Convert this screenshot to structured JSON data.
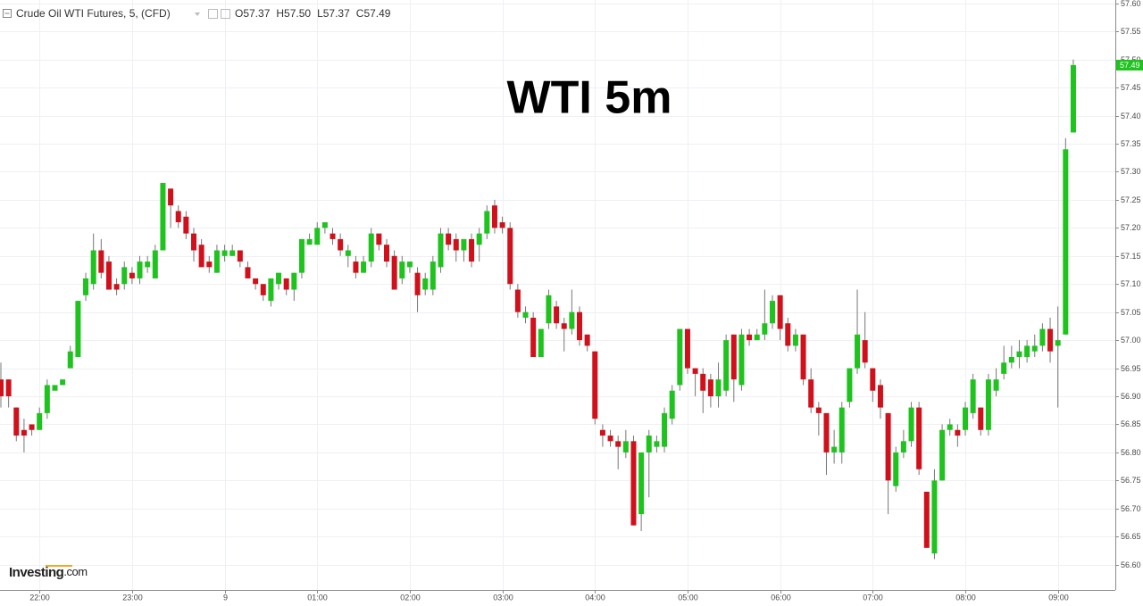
{
  "chart_data": {
    "type": "candlestick",
    "title": "WTI 5m",
    "instrument": "Crude Oil WTI Futures, 5, (CFD)",
    "legend_values": [
      "O57.37",
      "H57.50",
      "L57.37",
      "C57.49"
    ],
    "watermark": [
      "Investing",
      ".com"
    ],
    "up_color": "#1ec31e",
    "down_color": "#d0111b",
    "grid": true,
    "ylim": [
      56.555,
      57.606
    ],
    "yticks": [
      {
        "value": 56.6,
        "label": "56.60"
      },
      56.65,
      {
        "value": 56.7,
        "label": "56.70"
      },
      56.75,
      {
        "value": 56.8,
        "label": "56.80"
      },
      56.85,
      {
        "value": 56.9,
        "label": "56.90"
      },
      56.95,
      {
        "value": 57.0,
        "label": "57.00"
      },
      57.05,
      {
        "value": 57.1,
        "label": "57.10"
      },
      57.15,
      {
        "value": 57.2,
        "label": "57.20"
      },
      57.25,
      {
        "value": 57.3,
        "label": "57.30"
      },
      57.35,
      {
        "value": 57.4,
        "label": "57.40"
      },
      57.45,
      {
        "value": 57.5,
        "label": "57.50"
      },
      57.55,
      {
        "value": 57.6,
        "label": "57.60"
      }
    ],
    "categories": [
      null,
      null,
      null,
      null,
      null,
      "22:00",
      null,
      null,
      null,
      null,
      null,
      null,
      null,
      null,
      null,
      null,
      null,
      "23:00",
      null,
      null,
      null,
      null,
      null,
      null,
      null,
      null,
      null,
      null,
      null,
      "9",
      null,
      null,
      null,
      null,
      null,
      null,
      null,
      null,
      null,
      null,
      null,
      "01:00",
      null,
      null,
      null,
      null,
      null,
      null,
      null,
      null,
      null,
      null,
      null,
      "02:00",
      null,
      null,
      null,
      null,
      null,
      null,
      null,
      null,
      null,
      null,
      null,
      "03:00",
      null,
      null,
      null,
      null,
      null,
      null,
      null,
      null,
      null,
      null,
      null,
      "04:00",
      null,
      null,
      null,
      null,
      null,
      null,
      null,
      null,
      null,
      null,
      null,
      "05:00",
      null,
      null,
      null,
      null,
      null,
      null,
      null,
      null,
      null,
      null,
      null,
      "06:00",
      null,
      null,
      null,
      null,
      null,
      null,
      null,
      null,
      null,
      null,
      null,
      "07:00",
      null,
      null,
      null,
      null,
      null,
      null,
      null,
      null,
      null,
      null,
      null,
      "08:00",
      null,
      null,
      null,
      null,
      null,
      null,
      null,
      null,
      null,
      null,
      null,
      "09:00",
      null,
      null
    ],
    "open": [
      56.93,
      56.93,
      56.88,
      56.84,
      56.85,
      56.84,
      56.87,
      56.91,
      56.92,
      56.95,
      56.97,
      57.08,
      57.1,
      57.16,
      57.14,
      57.1,
      57.1,
      57.12,
      57.11,
      57.13,
      57.11,
      57.16,
      57.27,
      57.23,
      57.22,
      57.19,
      57.17,
      57.14,
      57.12,
      57.15,
      57.15,
      57.16,
      57.13,
      57.11,
      57.1,
      57.07,
      57.1,
      57.11,
      57.09,
      57.12,
      57.17,
      57.17,
      57.2,
      57.19,
      57.18,
      57.15,
      57.14,
      57.12,
      57.14,
      57.19,
      57.17,
      57.15,
      57.11,
      57.13,
      57.12,
      57.09,
      57.09,
      57.13,
      57.19,
      57.18,
      57.16,
      57.18,
      57.17,
      57.19,
      57.24,
      57.21,
      57.2,
      57.09,
      57.04,
      57.04,
      56.97,
      57.03,
      57.06,
      57.03,
      57.02,
      57.05,
      57.01,
      56.98,
      56.84,
      56.83,
      56.82,
      56.8,
      56.82,
      56.69,
      56.8,
      56.81,
      56.81,
      56.86,
      56.92,
      57.02,
      56.95,
      56.94,
      56.93,
      56.9,
      56.91,
      57.01,
      56.92,
      57.01,
      57.0,
      57.01,
      57.03,
      57.08,
      57.03,
      56.99,
      57.01,
      56.93,
      56.88,
      56.87,
      56.8,
      56.8,
      56.89,
      56.95,
      57.0,
      56.95,
      56.92,
      56.87,
      56.74,
      56.8,
      56.82,
      56.88,
      56.73,
      56.62,
      56.75,
      56.84,
      56.84,
      56.84,
      56.87,
      56.88,
      56.84,
      56.91,
      56.94,
      56.96,
      56.97,
      56.97,
      56.98,
      56.99,
      57.02,
      56.99,
      57.01,
      57.37
    ],
    "high": [
      56.96,
      56.93,
      56.88,
      56.86,
      56.85,
      56.88,
      56.93,
      56.92,
      56.93,
      56.99,
      57.07,
      57.12,
      57.19,
      57.18,
      57.15,
      57.11,
      57.14,
      57.13,
      57.15,
      57.15,
      57.17,
      57.28,
      57.27,
      57.24,
      57.23,
      57.2,
      57.18,
      57.15,
      57.17,
      57.17,
      57.17,
      57.16,
      57.14,
      57.11,
      57.1,
      57.11,
      57.12,
      57.11,
      57.12,
      57.18,
      57.19,
      57.21,
      57.21,
      57.2,
      57.19,
      57.17,
      57.15,
      57.15,
      57.2,
      57.19,
      57.18,
      57.16,
      57.15,
      57.14,
      57.13,
      57.12,
      57.15,
      57.2,
      57.2,
      57.19,
      57.18,
      57.19,
      57.2,
      57.24,
      57.25,
      57.22,
      57.21,
      57.1,
      57.06,
      57.05,
      57.02,
      57.09,
      57.07,
      57.04,
      57.09,
      57.06,
      57.01,
      56.98,
      56.85,
      56.84,
      56.83,
      56.84,
      56.83,
      56.8,
      56.84,
      56.83,
      56.88,
      56.92,
      57.02,
      57.02,
      56.95,
      56.95,
      56.94,
      56.96,
      57.01,
      57.01,
      57.02,
      57.02,
      57.02,
      57.09,
      57.08,
      57.08,
      57.04,
      57.02,
      57.01,
      56.95,
      56.89,
      56.87,
      56.84,
      56.89,
      56.95,
      57.09,
      57.05,
      56.95,
      56.93,
      56.87,
      56.81,
      56.84,
      56.89,
      56.89,
      56.73,
      56.77,
      56.85,
      56.86,
      56.85,
      56.89,
      56.94,
      56.88,
      56.94,
      56.95,
      56.99,
      56.99,
      57.0,
      57.0,
      57.01,
      57.03,
      57.04,
      57.06,
      57.36,
      57.5
    ],
    "low": [
      56.88,
      56.88,
      56.82,
      56.8,
      56.83,
      56.84,
      56.86,
      56.91,
      56.92,
      56.95,
      56.97,
      57.07,
      57.09,
      57.11,
      57.09,
      57.08,
      57.09,
      57.1,
      57.1,
      57.12,
      57.11,
      57.16,
      57.2,
      57.2,
      57.18,
      57.14,
      57.13,
      57.12,
      57.12,
      57.14,
      57.15,
      57.13,
      57.11,
      57.09,
      57.07,
      57.06,
      57.09,
      57.08,
      57.07,
      57.11,
      57.17,
      57.17,
      57.19,
      57.17,
      57.15,
      57.13,
      57.11,
      57.12,
      57.13,
      57.16,
      57.13,
      57.09,
      57.1,
      57.12,
      57.05,
      57.08,
      57.08,
      57.12,
      57.16,
      57.14,
      57.14,
      57.13,
      57.14,
      57.18,
      57.19,
      57.19,
      57.09,
      57.04,
      57.03,
      56.97,
      56.97,
      57.02,
      57.02,
      56.98,
      57.01,
      56.99,
      56.98,
      56.85,
      56.81,
      56.81,
      56.77,
      56.79,
      56.67,
      56.66,
      56.72,
      56.8,
      56.8,
      56.85,
      56.91,
      56.94,
      56.9,
      56.87,
      56.88,
      56.88,
      56.9,
      56.89,
      56.91,
      56.99,
      57.0,
      57.0,
      57.02,
      57.0,
      56.98,
      56.98,
      56.92,
      56.87,
      56.83,
      56.76,
      56.78,
      56.78,
      56.88,
      56.94,
      56.95,
      56.89,
      56.86,
      56.69,
      56.73,
      56.79,
      56.81,
      56.76,
      56.63,
      56.61,
      56.75,
      56.83,
      56.81,
      56.83,
      56.86,
      56.83,
      56.83,
      56.9,
      56.93,
      56.95,
      56.95,
      56.96,
      56.97,
      56.98,
      56.96,
      56.88,
      57.01,
      57.37
    ],
    "close": [
      56.9,
      56.9,
      56.83,
      56.83,
      56.84,
      56.87,
      56.92,
      56.92,
      56.93,
      56.98,
      57.07,
      57.11,
      57.16,
      57.12,
      57.09,
      57.09,
      57.13,
      57.11,
      57.14,
      57.14,
      57.16,
      57.28,
      57.24,
      57.21,
      57.19,
      57.16,
      57.13,
      57.13,
      57.16,
      57.16,
      57.16,
      57.14,
      57.11,
      57.1,
      57.08,
      57.11,
      57.12,
      57.09,
      57.12,
      57.18,
      57.18,
      57.2,
      57.21,
      57.18,
      57.16,
      57.16,
      57.12,
      57.14,
      57.19,
      57.17,
      57.14,
      57.09,
      57.14,
      57.14,
      57.08,
      57.11,
      57.14,
      57.19,
      57.17,
      57.16,
      57.18,
      57.14,
      57.19,
      57.23,
      57.2,
      57.2,
      57.1,
      57.05,
      57.05,
      56.97,
      57.02,
      57.08,
      57.03,
      57.02,
      57.05,
      57.0,
      56.99,
      56.86,
      56.83,
      56.82,
      56.81,
      56.82,
      56.67,
      56.8,
      56.83,
      56.82,
      56.87,
      56.91,
      57.02,
      56.95,
      56.94,
      56.91,
      56.9,
      56.93,
      57.0,
      56.93,
      57.01,
      57.0,
      57.01,
      57.03,
      57.07,
      57.02,
      56.99,
      57.01,
      56.93,
      56.88,
      56.87,
      56.8,
      56.81,
      56.88,
      56.95,
      57.01,
      56.96,
      56.91,
      56.88,
      56.75,
      56.8,
      56.82,
      56.88,
      56.77,
      56.63,
      56.75,
      56.84,
      56.85,
      56.83,
      56.88,
      56.93,
      56.84,
      56.93,
      56.93,
      56.96,
      56.97,
      56.98,
      56.99,
      56.99,
      57.02,
      56.98,
      57.0,
      57.34,
      57.49
    ]
  }
}
